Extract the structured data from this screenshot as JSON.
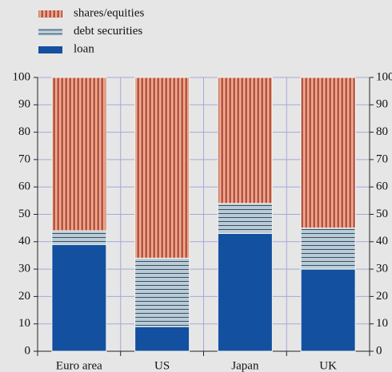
{
  "chart_data": {
    "type": "stacked_bar",
    "categories": [
      "Euro area",
      "US",
      "Japan",
      "UK"
    ],
    "series": [
      {
        "name": "loan",
        "color": "#1450a0",
        "hatch": null,
        "values": [
          39,
          9,
          43,
          30
        ]
      },
      {
        "name": "debt securities",
        "color": "#b9ccd6",
        "hatch": "#3a4e66",
        "hatch_direction": "horizontal",
        "values": [
          5,
          25,
          11,
          15
        ]
      },
      {
        "name": "shares/equities",
        "color": "#e4a284",
        "hatch": "#9a1c1c",
        "hatch_direction": "vertical",
        "values": [
          56,
          66,
          46,
          55
        ]
      }
    ],
    "ylim": [
      0,
      100
    ],
    "yticks": [
      0,
      10,
      20,
      30,
      40,
      50,
      60,
      70,
      80,
      90,
      100
    ],
    "y2lim": [
      0,
      100
    ],
    "y2ticks": [
      0,
      10,
      20,
      30,
      40,
      50,
      60,
      70,
      80,
      90,
      100
    ],
    "grid": true,
    "legend": "top-left"
  }
}
